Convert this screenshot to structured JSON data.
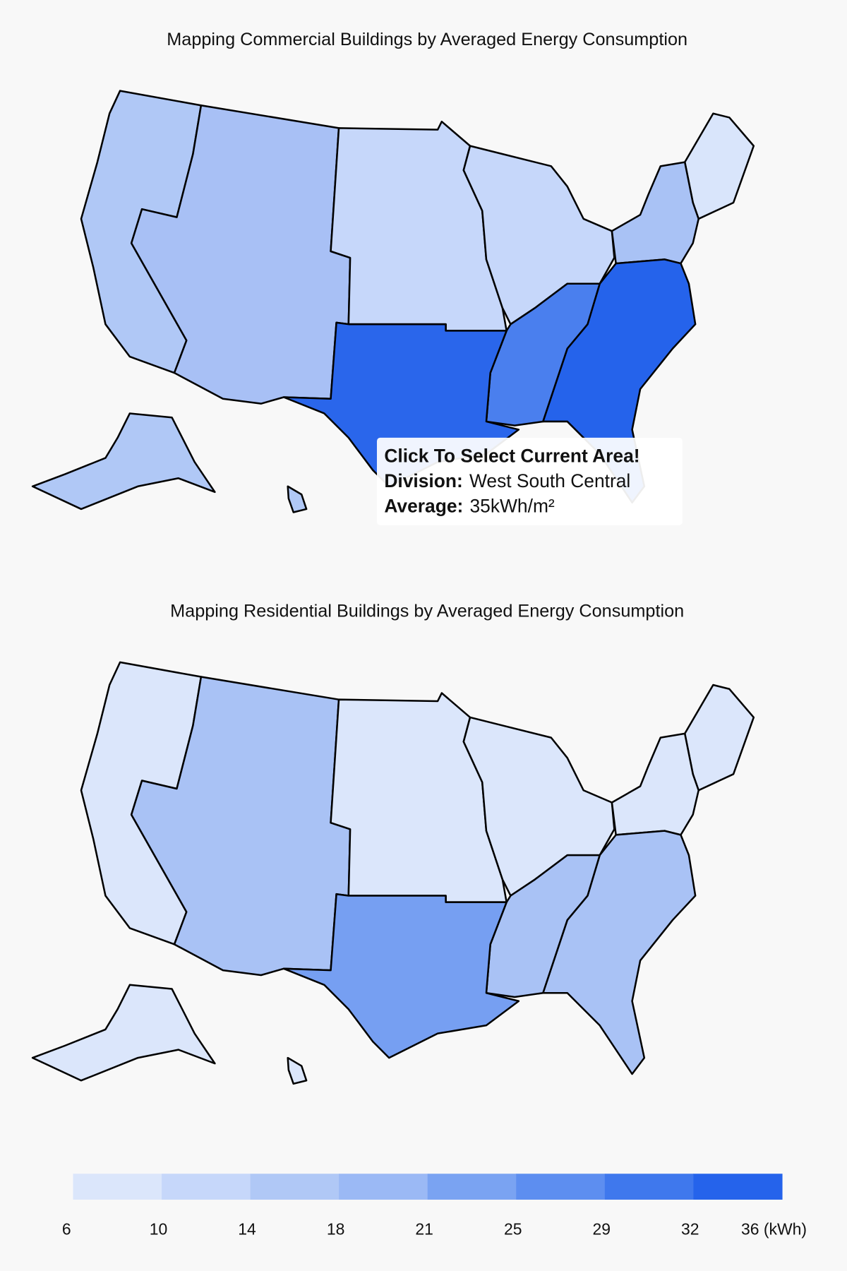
{
  "maps": [
    {
      "title": "Mapping Commercial Buildings by Averaged Energy Consumption",
      "fills": [
        "#b0c8f6",
        "#a8c0f5",
        "#c6d7fa",
        "#c6d7fa",
        "#d9e5fb",
        "#a9c2f5",
        "#2563eb",
        "#4a7fee",
        "#2a66eb"
      ]
    },
    {
      "title": "Mapping Residential Buildings by Averaged Energy Consumption",
      "fills": [
        "#dbe6fb",
        "#a9c2f5",
        "#dbe6fb",
        "#dbe6fb",
        "#dbe6fb",
        "#dbe6fb",
        "#a9c2f5",
        "#a9c2f5",
        "#769ff2"
      ]
    }
  ],
  "tooltip": {
    "heading": "Click To Select Current Area!",
    "rows": [
      {
        "label": "Division:",
        "value": "West South Central"
      },
      {
        "label": "Average:",
        "value": "35kWh/m²"
      }
    ]
  },
  "legend": {
    "colors": [
      "#dbe6fb",
      "#c6d7fa",
      "#b0c8f6",
      "#9bb9f5",
      "#7aa3f2",
      "#5d8ef0",
      "#3f78ed",
      "#2563eb"
    ],
    "ticks": [
      6,
      10,
      14,
      18,
      21,
      25,
      29,
      32,
      {
        "value": 36,
        "label": "36 (kWh)"
      }
    ]
  }
}
